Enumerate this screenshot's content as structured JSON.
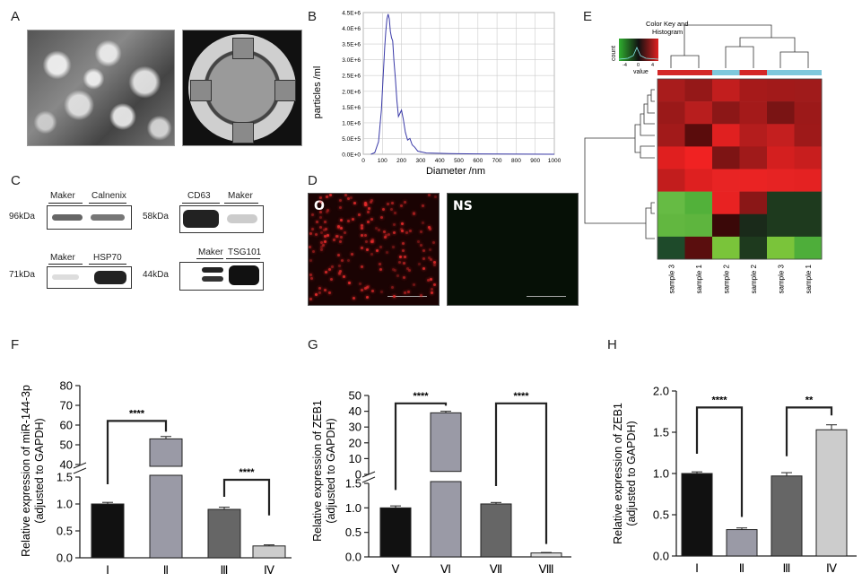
{
  "panels": {
    "A": "A",
    "B": "B",
    "C": "C",
    "D": "D",
    "E": "E",
    "F": "F",
    "G": "G",
    "H": "H"
  },
  "panelB": {
    "ylabel": "particles /ml",
    "xlabel": "Diameter /nm",
    "yticks": [
      "0.0E+0",
      "5.0E+5",
      "1.0E+6",
      "1.5E+6",
      "2.0E+6",
      "2.5E+6",
      "3.0E+6",
      "3.5E+6",
      "4.0E+6",
      "4.5E+6"
    ],
    "xticks": [
      "0",
      "100",
      "200",
      "300",
      "400",
      "500",
      "600",
      "700",
      "800",
      "900",
      "1000"
    ]
  },
  "panelC": {
    "blot1": {
      "mw": "96kDa",
      "lane1": "Maker",
      "lane2": "Calnenix"
    },
    "blot2": {
      "mw": "58kDa",
      "lane1": "CD63",
      "lane2": "Maker"
    },
    "blot3": {
      "mw": "71kDa",
      "lane1": "Maker",
      "lane2": "HSP70"
    },
    "blot4": {
      "mw": "44kDa",
      "lane1": "Maker",
      "lane2": "TSG101"
    }
  },
  "panelD": {
    "left_label": "O",
    "right_label": "NS"
  },
  "panelE": {
    "key_title_1": "Color Key and",
    "key_title_2": "Histogram",
    "key_count": "count",
    "key_value": "value",
    "key_ticks": [
      "-4",
      "0",
      "4"
    ],
    "columns": [
      "O, sample 3",
      "O, sample 1",
      "P, sample 2",
      "O, sample 2",
      "P, sample 3",
      "P, sample 1"
    ],
    "group_colors": [
      "#d42828",
      "#d42828",
      "#7ec8dc",
      "#d42828",
      "#7ec8dc",
      "#7ec8dc"
    ],
    "matrix_colors": [
      [
        "#a81c1c",
        "#951818",
        "#c21e1e",
        "#a61a1a",
        "#a21a1a",
        "#a01b1b"
      ],
      [
        "#9a1919",
        "#b81e1e",
        "#8c1717",
        "#a41a1a",
        "#7a1414",
        "#9c1919"
      ],
      [
        "#a21a1a",
        "#5a0c0c",
        "#e02020",
        "#b41d1d",
        "#c41f1f",
        "#9e1919"
      ],
      [
        "#e01f1f",
        "#f02222",
        "#7d1414",
        "#a01a1a",
        "#d41f1f",
        "#c81e1e"
      ],
      [
        "#c21d1d",
        "#de2020",
        "#e82424",
        "#ea2323",
        "#e62323",
        "#e42222"
      ],
      [
        "#66bb44",
        "#52b13a",
        "#e82222",
        "#8a1717",
        "#1e3a1e",
        "#1e3a1e"
      ],
      [
        "#62b740",
        "#5eb53e",
        "#3a0808",
        "#1a2a1a",
        "#1e3a1e",
        "#1e3a1e"
      ],
      [
        "#1e4a2a",
        "#5a0e0e",
        "#7ac43a",
        "#1e3a1e",
        "#7ac43a",
        "#4eae3a"
      ]
    ]
  },
  "chart_data": [
    {
      "type": "bar",
      "panel": "F",
      "ylabel": "Relative expression of miR-144-3p\n(adjusted to GAPDH)",
      "categories": [
        "Ⅰ",
        "Ⅱ",
        "Ⅲ",
        "Ⅳ"
      ],
      "values": [
        1.0,
        53.0,
        0.9,
        0.22
      ],
      "errors": [
        0.03,
        1.2,
        0.04,
        0.02
      ],
      "bar_colors": [
        "#111111",
        "#9a9aa6",
        "#666666",
        "#cccccc"
      ],
      "broken_axis": {
        "lower": [
          0,
          1.5
        ],
        "upper": [
          40,
          80
        ]
      },
      "lower_ticks": [
        "0.0",
        "0.5",
        "1.0",
        "1.5"
      ],
      "upper_ticks": [
        "40",
        "50",
        "60",
        "70",
        "80"
      ],
      "significance": [
        {
          "pair": [
            0,
            1
          ],
          "label": "****"
        },
        {
          "pair": [
            2,
            3
          ],
          "label": "****"
        }
      ]
    },
    {
      "type": "bar",
      "panel": "G",
      "ylabel": "Relative expression of ZEB1\n(adjusted to GAPDH)",
      "categories": [
        "Ⅴ",
        "Ⅵ",
        "Ⅶ",
        "Ⅷ"
      ],
      "values": [
        1.0,
        39.0,
        1.08,
        0.08
      ],
      "errors": [
        0.04,
        1.0,
        0.03,
        0.01
      ],
      "bar_colors": [
        "#111111",
        "#9a9aa6",
        "#666666",
        "#dddddd"
      ],
      "broken_axis": {
        "lower": [
          0,
          1.5
        ],
        "upper": [
          0,
          50
        ]
      },
      "lower_ticks": [
        "0.0",
        "0.5",
        "1.0",
        "1.5"
      ],
      "upper_ticks": [
        "0",
        "10",
        "20",
        "30",
        "40",
        "50"
      ],
      "significance": [
        {
          "pair": [
            0,
            1
          ],
          "label": "****"
        },
        {
          "pair": [
            2,
            3
          ],
          "label": "****"
        }
      ]
    },
    {
      "type": "bar",
      "panel": "H",
      "ylabel": "Relative expression of ZEB1\n(adjusted to GAPDH)",
      "categories": [
        "Ⅰ",
        "Ⅱ",
        "Ⅲ",
        "Ⅳ"
      ],
      "values": [
        1.0,
        0.32,
        0.97,
        1.53
      ],
      "errors": [
        0.02,
        0.02,
        0.04,
        0.06
      ],
      "bar_colors": [
        "#111111",
        "#9a9aa6",
        "#666666",
        "#cccccc"
      ],
      "ylim": [
        0,
        2.0
      ],
      "ticks": [
        "0.0",
        "0.5",
        "1.0",
        "1.5",
        "2.0"
      ],
      "significance": [
        {
          "pair": [
            0,
            1
          ],
          "label": "****"
        },
        {
          "pair": [
            2,
            3
          ],
          "label": "**"
        }
      ]
    }
  ]
}
